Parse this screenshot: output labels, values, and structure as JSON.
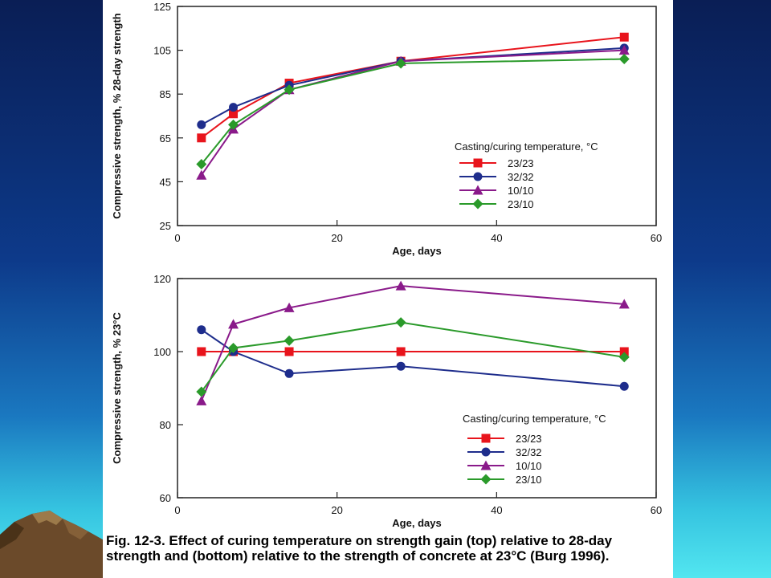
{
  "caption": "Fig. 12-3. Effect of curing temperature on strength gain (top) relative to 28-day strength and (bottom) relative to the strength of concrete at 23°C (Burg 1996).",
  "chart_data": [
    {
      "type": "line",
      "title": "",
      "xlabel": "Age, days",
      "ylabel": "Compressive strength, % 28-day strength",
      "xlim": [
        0,
        60
      ],
      "ylim": [
        25,
        125
      ],
      "xticks": [
        0,
        20,
        40,
        60
      ],
      "yticks": [
        25,
        45,
        65,
        85,
        105,
        125
      ],
      "legend_title": "Casting/curing temperature, °C",
      "legend_position": "lower-right",
      "grid": false,
      "series": [
        {
          "name": "23/23",
          "color": "#e8141c",
          "marker": "square",
          "x": [
            3,
            7,
            14,
            28,
            56
          ],
          "y": [
            65,
            76,
            90,
            100,
            111
          ]
        },
        {
          "name": "32/32",
          "color": "#1e2d8c",
          "marker": "circle",
          "x": [
            3,
            7,
            14,
            28,
            56
          ],
          "y": [
            71,
            79,
            89,
            100,
            106
          ]
        },
        {
          "name": "10/10",
          "color": "#8a1a8a",
          "marker": "triangle",
          "x": [
            3,
            7,
            14,
            28,
            56
          ],
          "y": [
            48,
            69,
            87,
            100,
            105
          ]
        },
        {
          "name": "23/10",
          "color": "#2a9a2a",
          "marker": "diamond",
          "x": [
            3,
            7,
            14,
            28,
            56
          ],
          "y": [
            53,
            71,
            87,
            99,
            101
          ]
        }
      ]
    },
    {
      "type": "line",
      "title": "",
      "xlabel": "Age, days",
      "ylabel": "Compressive strength, % 23°C",
      "xlim": [
        0,
        60
      ],
      "ylim": [
        60,
        120
      ],
      "xticks": [
        0,
        20,
        40,
        60
      ],
      "yticks": [
        60,
        80,
        100,
        120
      ],
      "legend_title": "Casting/curing temperature, °C",
      "legend_position": "lower-right",
      "grid": false,
      "series": [
        {
          "name": "23/23",
          "color": "#e8141c",
          "marker": "square",
          "x": [
            3,
            7,
            14,
            28,
            56
          ],
          "y": [
            100,
            100,
            100,
            100,
            100
          ]
        },
        {
          "name": "32/32",
          "color": "#1e2d8c",
          "marker": "circle",
          "x": [
            3,
            7,
            14,
            28,
            56
          ],
          "y": [
            106,
            100,
            94,
            96,
            90.5
          ]
        },
        {
          "name": "10/10",
          "color": "#8a1a8a",
          "marker": "triangle",
          "x": [
            3,
            7,
            14,
            28,
            56
          ],
          "y": [
            86.5,
            107.5,
            112,
            118,
            113
          ]
        },
        {
          "name": "23/10",
          "color": "#2a9a2a",
          "marker": "diamond",
          "x": [
            3,
            7,
            14,
            28,
            56
          ],
          "y": [
            89,
            101,
            103,
            108,
            98.5
          ]
        }
      ]
    }
  ]
}
